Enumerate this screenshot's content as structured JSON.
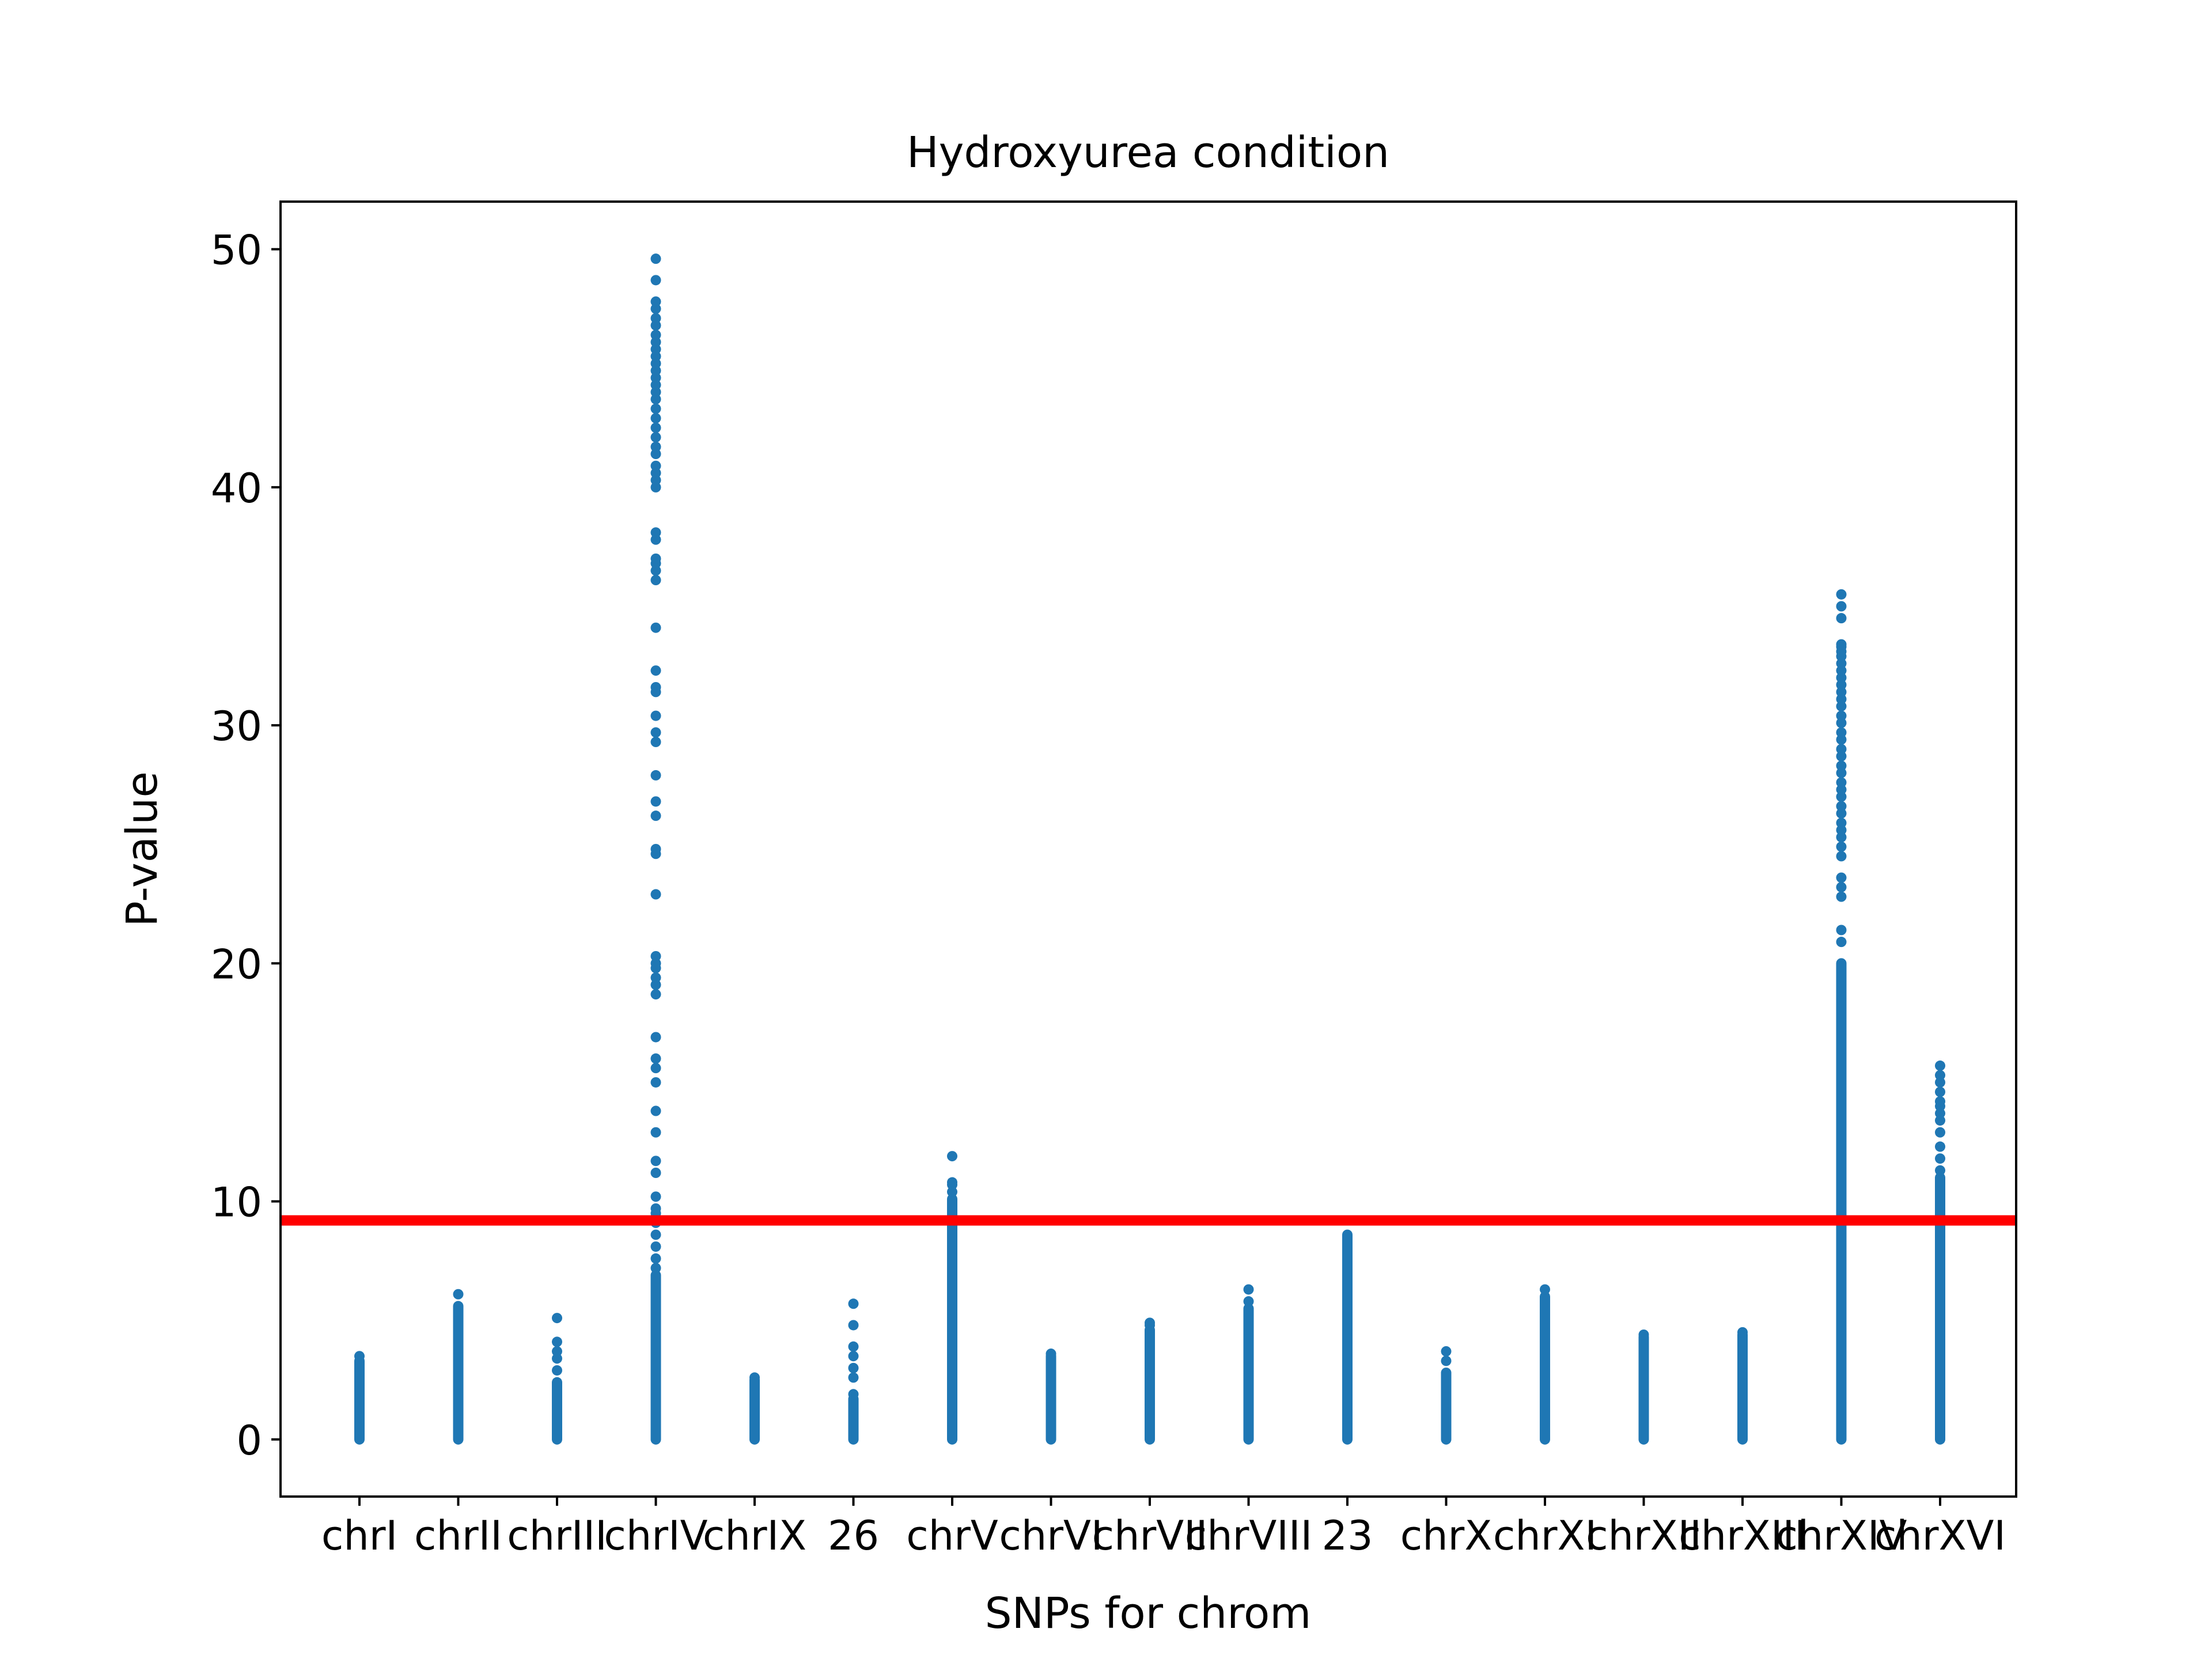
{
  "chart_data": {
    "type": "scatter",
    "title": "Hydroxyurea condition",
    "xlabel": "SNPs for chrom",
    "ylabel": "P-value",
    "ylim": [
      -2.4,
      52.0
    ],
    "yticks": [
      0,
      10,
      20,
      30,
      40,
      50
    ],
    "grid": false,
    "legend": "none",
    "colors": {
      "points": "#1f77b4",
      "threshold": "#ff0000"
    },
    "threshold": 9.2,
    "categories": [
      "chrI",
      "chrII",
      "chrIII",
      "chrIV",
      "chrIX",
      "26",
      "chrV",
      "chrVI",
      "chrVII",
      "chrVIII",
      "23",
      "chrX",
      "chrXI",
      "chrXII",
      "chrXIII",
      "chrXIV",
      "chrXVI"
    ],
    "columns": [
      {
        "dense_max": 3.3,
        "points": [
          3.5
        ]
      },
      {
        "dense_max": 5.6,
        "points": [
          6.1
        ]
      },
      {
        "dense_max": 2.4,
        "points": [
          2.9,
          3.4,
          3.7,
          4.1,
          5.1
        ]
      },
      {
        "dense_max": 6.9,
        "points": [
          7.2,
          7.6,
          8.1,
          8.6,
          9.1,
          9.5,
          9.7,
          10.2,
          11.2,
          11.7,
          12.9,
          13.8,
          15.0,
          15.6,
          16.0,
          16.9,
          18.7,
          19.1,
          19.4,
          19.8,
          20.0,
          20.3,
          22.9,
          24.6,
          24.8,
          26.2,
          26.8,
          27.9,
          29.3,
          29.7,
          30.4,
          31.4,
          31.6,
          32.3,
          34.1,
          36.1,
          36.5,
          36.8,
          37.0,
          37.8,
          38.1,
          40.0,
          40.3,
          40.6,
          40.9,
          41.4,
          41.7,
          42.1,
          42.5,
          42.9,
          43.3,
          43.7,
          44.0,
          44.3,
          44.6,
          44.9,
          45.2,
          45.5,
          45.8,
          46.1,
          46.4,
          46.8,
          47.1,
          47.5,
          47.8,
          48.7,
          49.6
        ]
      },
      {
        "dense_max": 2.5,
        "points": [
          2.6
        ]
      },
      {
        "dense_max": 1.7,
        "points": [
          1.9,
          2.6,
          3.0,
          3.5,
          3.9,
          4.8,
          5.7
        ]
      },
      {
        "dense_max": 10.1,
        "points": [
          10.4,
          10.7,
          10.8,
          11.9
        ]
      },
      {
        "dense_max": 3.5,
        "points": [
          3.6
        ]
      },
      {
        "dense_max": 4.6,
        "points": [
          4.8,
          4.9
        ]
      },
      {
        "dense_max": 5.5,
        "points": [
          5.8,
          6.3
        ]
      },
      {
        "dense_max": 8.6,
        "points": []
      },
      {
        "dense_max": 2.8,
        "points": [
          3.3,
          3.7
        ]
      },
      {
        "dense_max": 6.0,
        "points": [
          6.3
        ]
      },
      {
        "dense_max": 4.3,
        "points": [
          4.4
        ]
      },
      {
        "dense_max": 4.4,
        "points": [
          4.5
        ]
      },
      {
        "dense_max": 20.0,
        "points": [
          20.9,
          21.4,
          22.8,
          23.2,
          23.6,
          24.5,
          24.9,
          25.3,
          25.6,
          25.9,
          26.3,
          26.6,
          27.0,
          27.3,
          27.6,
          28.0,
          28.3,
          28.7,
          29.0,
          29.4,
          29.7,
          30.1,
          30.4,
          30.8,
          31.1,
          31.4,
          31.7,
          32.0,
          32.3,
          32.6,
          32.9,
          33.1,
          33.3,
          33.4,
          34.5,
          35.0,
          35.5
        ]
      },
      {
        "dense_max": 11.0,
        "points": [
          11.3,
          11.8,
          12.3,
          12.9,
          13.4,
          13.7,
          14.0,
          14.2,
          14.6,
          15.0,
          15.3,
          15.7
        ]
      }
    ]
  }
}
